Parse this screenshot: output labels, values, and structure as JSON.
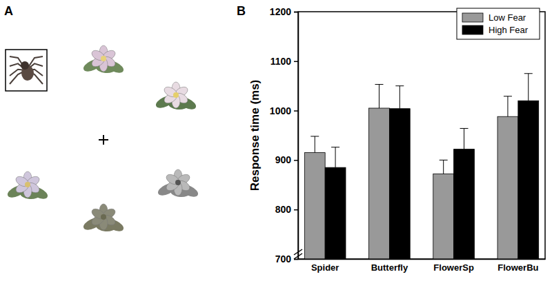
{
  "panel_labels": [
    "A",
    "B"
  ],
  "chart_data": {
    "type": "bar",
    "y_label": "Response time (ms)",
    "categories": [
      "Spider",
      "Butterfly",
      "FlowerSp",
      "FlowerBu"
    ],
    "series": [
      {
        "name": "Low Fear",
        "color": "#999999",
        "values": [
          915,
          1005,
          872,
          988
        ],
        "errors": [
          33,
          48,
          28,
          41
        ]
      },
      {
        "name": "High Fear",
        "color": "#000000",
        "values": [
          885,
          1004,
          922,
          1020
        ],
        "errors": [
          41,
          46,
          42,
          55
        ]
      }
    ],
    "ylim": [
      700,
      1200
    ],
    "yticks": [
      700,
      800,
      900,
      1000,
      1100,
      1200
    ],
    "legend": "upper right",
    "grid": false
  }
}
